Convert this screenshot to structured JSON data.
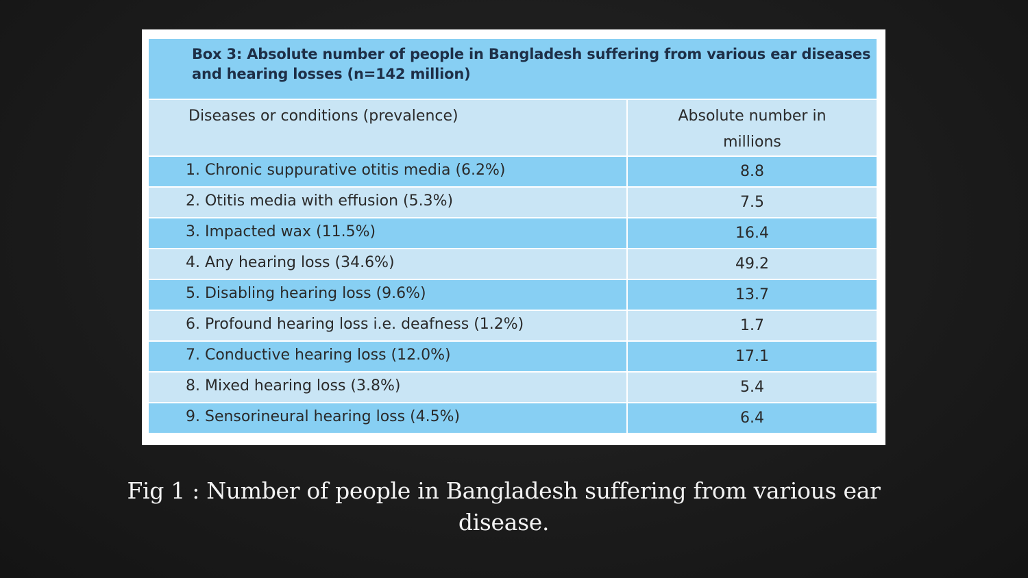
{
  "chart_data": {
    "type": "table",
    "title": "Box 3: Absolute number of people in Bangladesh suffering from various ear diseases and hearing losses (n=142 million)",
    "title_lines": [
      "Box 3: Absolute number of people in Bangladesh suffering from various ear diseases",
      "and hearing losses (n=142 million)"
    ],
    "columns": {
      "name": "Diseases or conditions (prevalence)",
      "value": "Absolute number in millions",
      "value_lines": [
        "Absolute number in",
        "millions"
      ]
    },
    "rows": [
      {
        "label": "1. Chronic suppurative otitis media (6.2%)",
        "value": "8.8"
      },
      {
        "label": "2. Otitis media with effusion (5.3%)",
        "value": "7.5"
      },
      {
        "label": "3. Impacted  wax (11.5%)",
        "value": "16.4"
      },
      {
        "label": "4. Any hearing loss (34.6%)",
        "value": "49.2"
      },
      {
        "label": "5. Disabling hearing loss (9.6%)",
        "value": "13.7"
      },
      {
        "label": "6. Profound hearing loss i.e. deafness (1.2%)",
        "value": "1.7"
      },
      {
        "label": "7. Conductive hearing loss (12.0%)",
        "value": "17.1"
      },
      {
        "label": "8. Mixed hearing loss (3.8%)",
        "value": "5.4"
      },
      {
        "label": "9. Sensorineural hearing loss (4.5%)",
        "value": "6.4"
      }
    ]
  },
  "caption": {
    "line1": "Fig 1 : Number of people in Bangladesh suffering from various ear",
    "line2": "disease."
  },
  "colors": {
    "slide_background": "#1c1c1c",
    "row_dark": "#87cff3",
    "row_light": "#c9e5f5",
    "title_text": "#1e2f47",
    "caption_text": "#f2f2f2"
  }
}
